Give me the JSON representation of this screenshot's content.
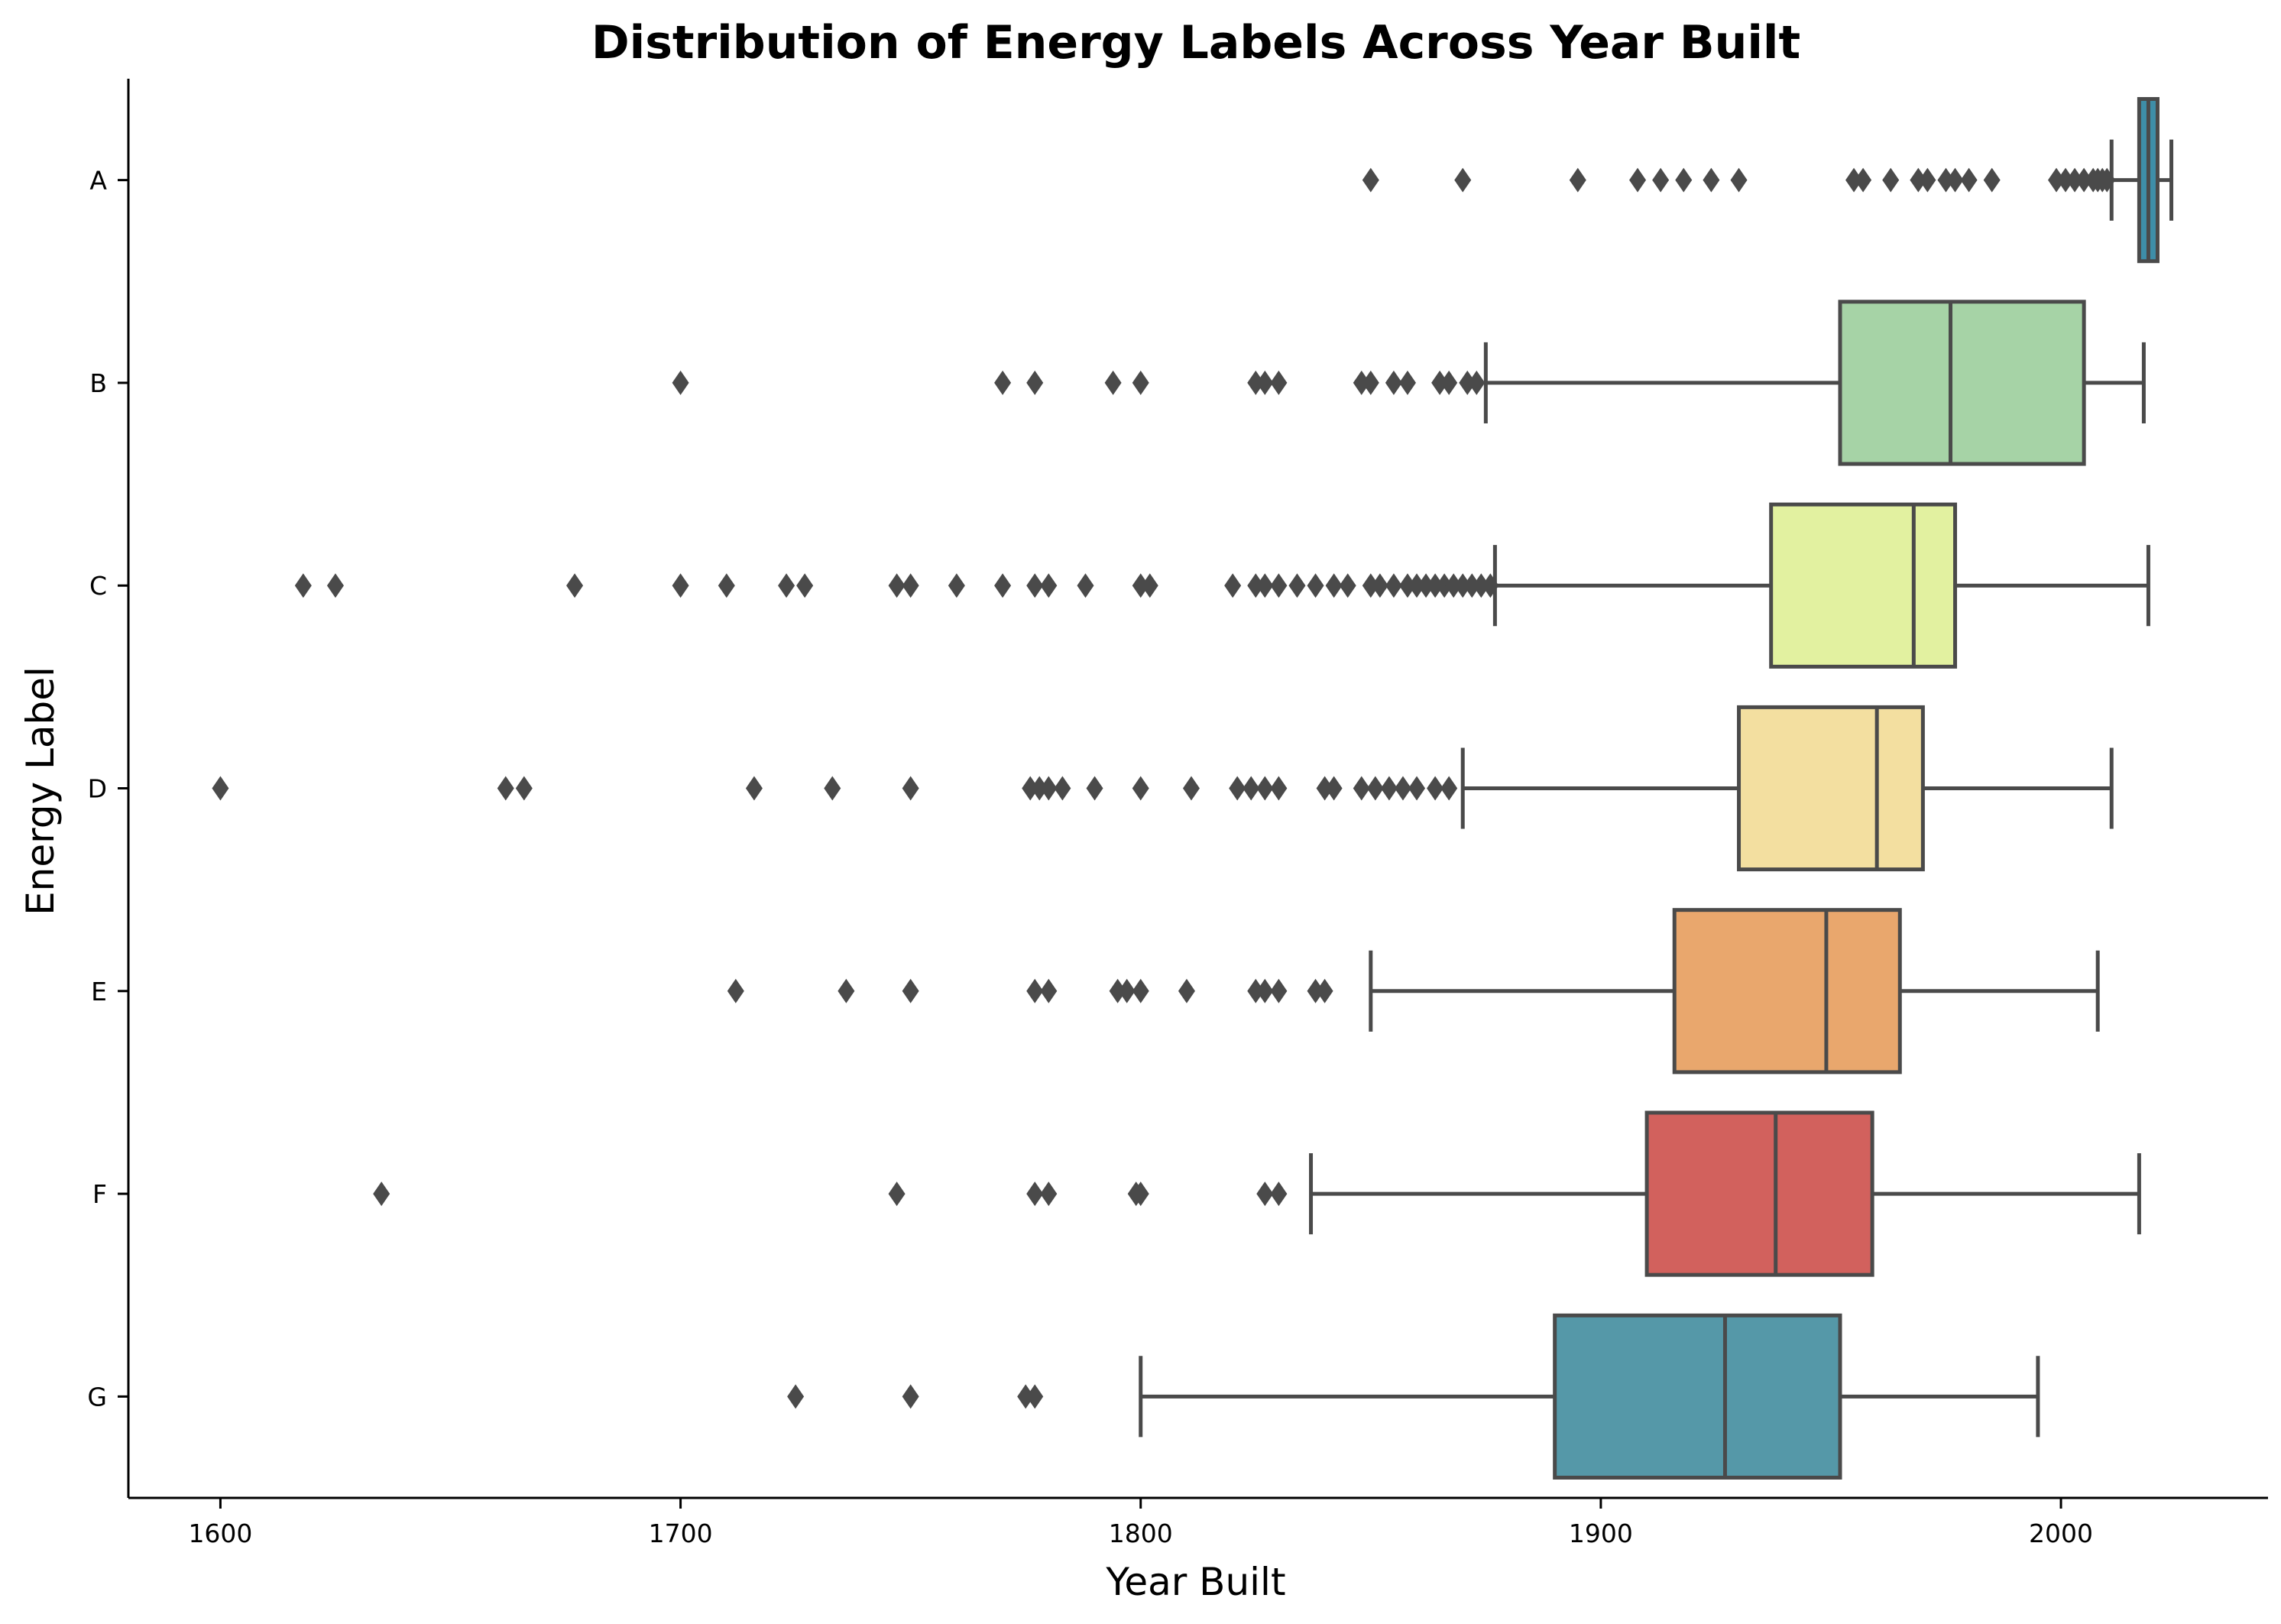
{
  "chart_data": {
    "type": "box",
    "title": "Distribution of Energy Labels Across Year Built",
    "xlabel": "Year Built",
    "ylabel": "Energy Label",
    "xlim": [
      1580,
      2045
    ],
    "xticks": [
      1600,
      1700,
      1800,
      1900,
      2000
    ],
    "orientation": "horizontal",
    "grid": false,
    "series": [
      {
        "name": "A",
        "color": "#3e8ea8",
        "whisker_low": 2011,
        "q1": 2017,
        "median": 2019,
        "q3": 2021,
        "whisker_high": 2024,
        "outliers": [
          1850,
          1870,
          1895,
          1908,
          1913,
          1918,
          1924,
          1930,
          1955,
          1957,
          1963,
          1969,
          1971,
          1975,
          1977,
          1980,
          1985,
          1999,
          2001,
          2003,
          2005,
          2007,
          2008,
          2009,
          2010
        ]
      },
      {
        "name": "B",
        "color": "#a6d3a6",
        "whisker_low": 1875,
        "q1": 1952,
        "median": 1976,
        "q3": 2005,
        "whisker_high": 2018,
        "outliers": [
          1700,
          1770,
          1777,
          1794,
          1800,
          1825,
          1827,
          1830,
          1848,
          1850,
          1855,
          1858,
          1865,
          1867,
          1871,
          1873
        ]
      },
      {
        "name": "C",
        "color": "#e2f1a0",
        "whisker_low": 1877,
        "q1": 1937,
        "median": 1968,
        "q3": 1977,
        "whisker_high": 2019,
        "outliers": [
          1618,
          1625,
          1677,
          1700,
          1710,
          1723,
          1727,
          1747,
          1750,
          1760,
          1770,
          1777,
          1780,
          1788,
          1800,
          1802,
          1820,
          1825,
          1827,
          1830,
          1834,
          1838,
          1842,
          1845,
          1850,
          1852,
          1855,
          1858,
          1860,
          1862,
          1864,
          1866,
          1868,
          1870,
          1872,
          1874,
          1876
        ]
      },
      {
        "name": "D",
        "color": "#f3dfa0",
        "whisker_low": 1870,
        "q1": 1930,
        "median": 1960,
        "q3": 1970,
        "whisker_high": 2011,
        "outliers": [
          1600,
          1662,
          1666,
          1716,
          1733,
          1750,
          1776,
          1778,
          1780,
          1783,
          1790,
          1800,
          1811,
          1821,
          1824,
          1827,
          1830,
          1840,
          1842,
          1848,
          1851,
          1854,
          1857,
          1860,
          1864,
          1867
        ]
      },
      {
        "name": "E",
        "color": "#e9a76d",
        "whisker_low": 1850,
        "q1": 1916,
        "median": 1949,
        "q3": 1965,
        "whisker_high": 2008,
        "outliers": [
          1712,
          1736,
          1750,
          1777,
          1780,
          1795,
          1797,
          1800,
          1810,
          1825,
          1827,
          1830,
          1838,
          1840
        ]
      },
      {
        "name": "F",
        "color": "#d2615d",
        "whisker_low": 1837,
        "q1": 1910,
        "median": 1938,
        "q3": 1959,
        "whisker_high": 2017,
        "outliers": [
          1635,
          1747,
          1777,
          1780,
          1799,
          1800,
          1827,
          1830
        ]
      },
      {
        "name": "G",
        "color": "#5598a8",
        "whisker_low": 1800,
        "q1": 1890,
        "median": 1927,
        "q3": 1952,
        "whisker_high": 1995,
        "outliers": [
          1725,
          1750,
          1775,
          1777
        ]
      }
    ]
  }
}
